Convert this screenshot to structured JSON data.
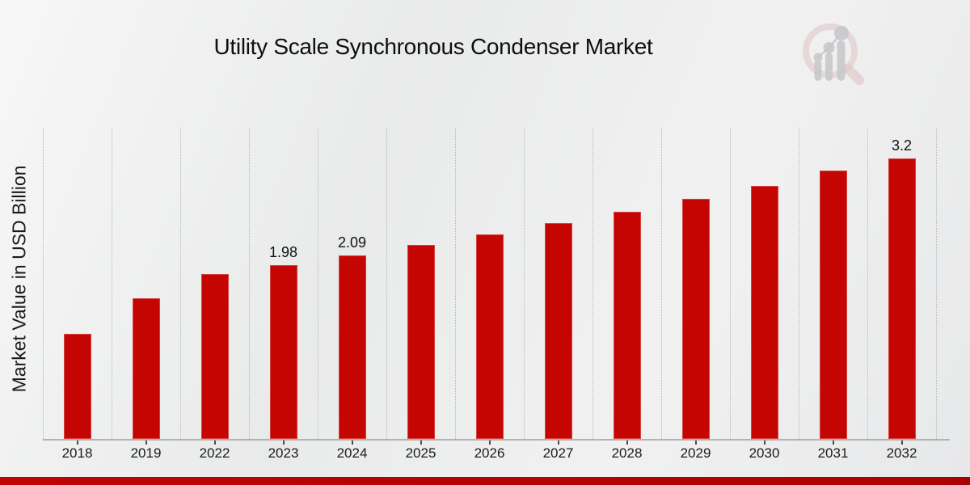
{
  "page": {
    "title": "Utility Scale Synchronous Condenser Market"
  },
  "chart_data": {
    "type": "bar",
    "title": "Utility Scale Synchronous Condenser Market",
    "xlabel": "",
    "ylabel": "Market Value in USD Billion",
    "categories": [
      "2018",
      "2019",
      "2022",
      "2023",
      "2024",
      "2025",
      "2026",
      "2027",
      "2028",
      "2029",
      "2030",
      "2031",
      "2032"
    ],
    "values": [
      1.2,
      1.6,
      1.88,
      1.98,
      2.09,
      2.21,
      2.33,
      2.46,
      2.59,
      2.74,
      2.89,
      3.06,
      3.2
    ],
    "bar_labels": [
      "",
      "",
      "",
      "1.98",
      "2.09",
      "",
      "",
      "",
      "",
      "",
      "",
      "",
      "3.2"
    ],
    "ylim": [
      0,
      3.55
    ],
    "grid": "vertical-dotted",
    "legend": "none",
    "colors": {
      "bar": "#c40502",
      "gridline": "#b5b6b7",
      "axis": "#b2b2b2",
      "tick": "#4c4c4c",
      "label_text": "#111111",
      "footer_band_left": "#c00402",
      "footer_band_right": "#aa0202",
      "logo_pink": "#dfc4c4",
      "logo_gray": "#c6c7ca"
    }
  },
  "footer": {
    "band": "brand-red-strip"
  },
  "branding": {
    "logo": "magnifier-bar-chart-logo"
  }
}
